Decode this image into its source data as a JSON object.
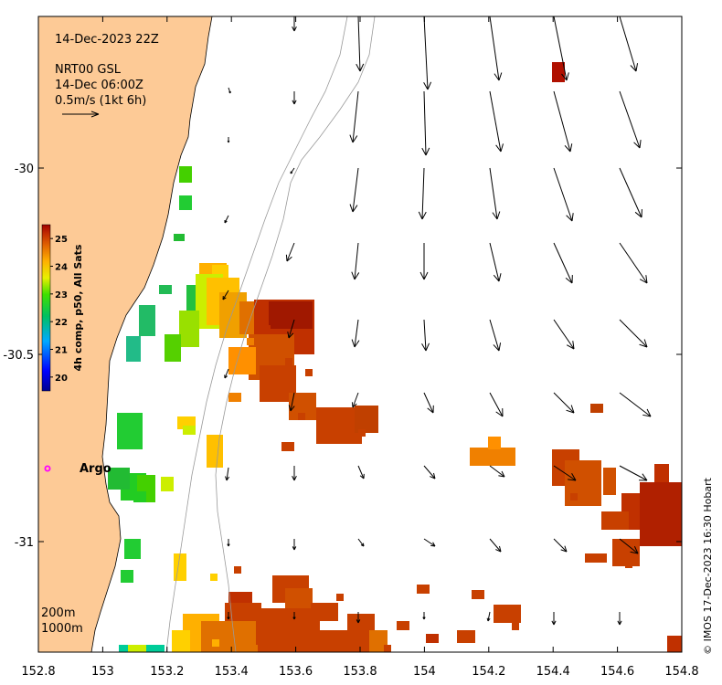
{
  "map": {
    "date_label": "14-Dec-2023 22Z",
    "current_source": "NRT00 GSL",
    "current_time": "14-Dec 06:00Z",
    "scale_label": "0.5m/s (1kt 6h)",
    "argo_label": "Argo",
    "depth_200": "200m",
    "depth_1000": "1000m",
    "credit": "© IMOS 17-Dec-2023 16:30 Hobart",
    "colors": {
      "land": "#fdca96",
      "sea": "#ffffff",
      "argo": "#ff00ff"
    }
  },
  "x_axis": {
    "ticks": [
      "152.8",
      "153",
      "153.2",
      "153.4",
      "153.6",
      "153.8",
      "154",
      "154.2",
      "154.4",
      "154.6",
      "154.8"
    ]
  },
  "y_axis": {
    "ticks": [
      "-30",
      "-30.5",
      "-31"
    ]
  },
  "colorbar": {
    "title": "4h comp, p50, All Sats",
    "ticks": [
      "25",
      "24",
      "23",
      "22",
      "21",
      "20"
    ],
    "min": 19.5,
    "max": 25.5
  }
}
